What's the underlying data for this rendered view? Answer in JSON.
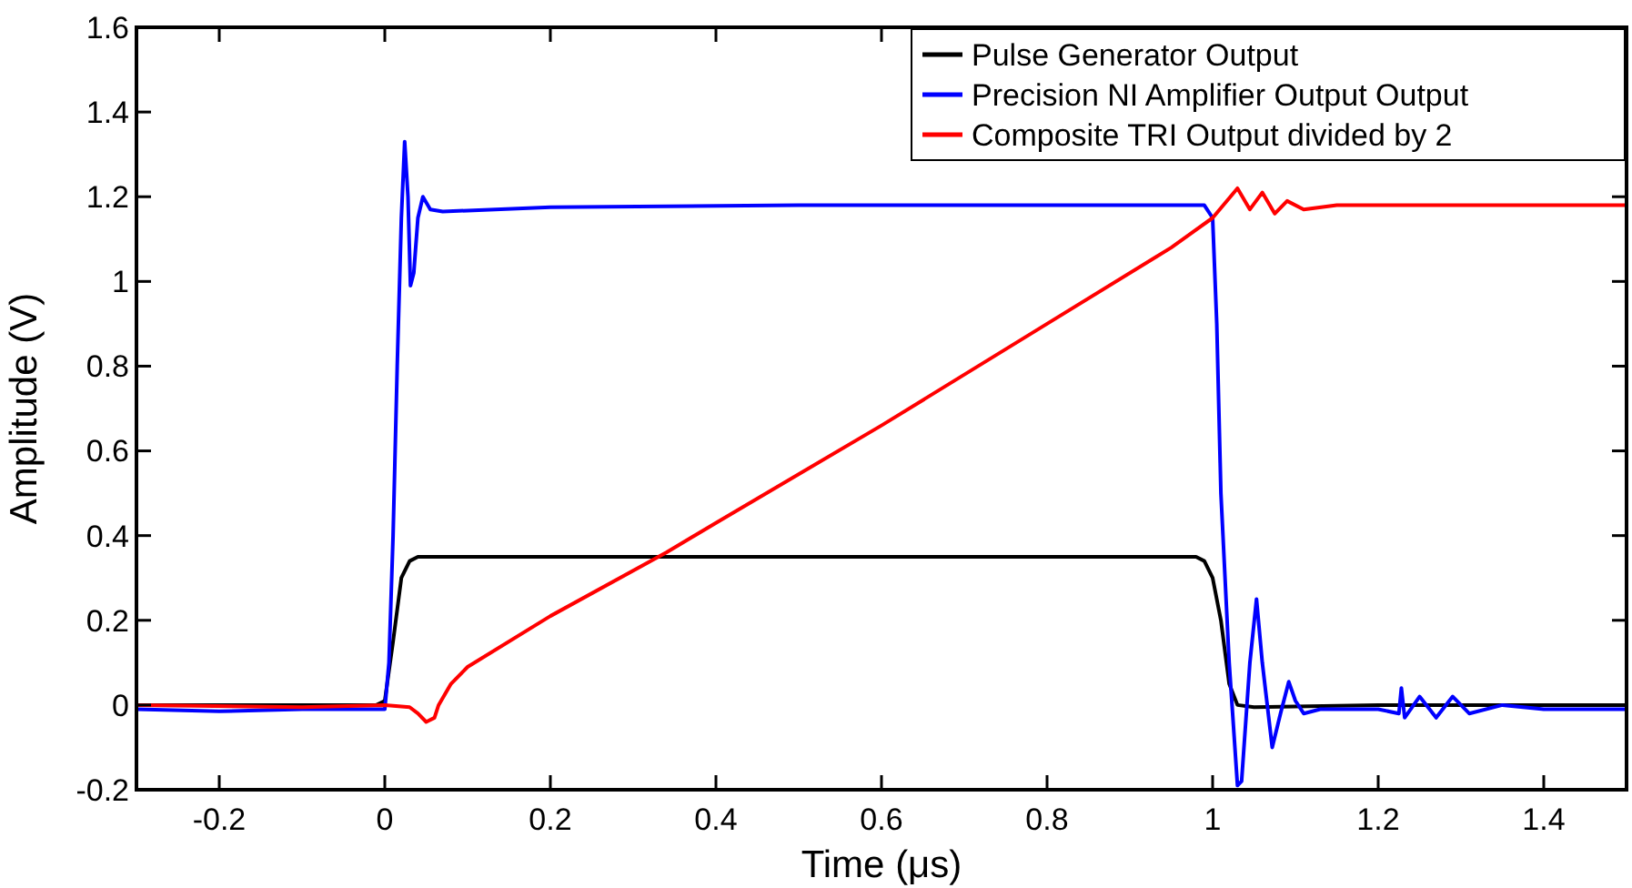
{
  "chart_data": {
    "type": "line",
    "xlabel": "Time (μs)",
    "ylabel": "Amplitude (V)",
    "xlim": [
      -0.3,
      1.5
    ],
    "ylim": [
      -0.2,
      1.6
    ],
    "xticks": [
      -0.2,
      0,
      0.2,
      0.4,
      0.6,
      0.8,
      1,
      1.2,
      1.4
    ],
    "yticks": [
      -0.2,
      0,
      0.2,
      0.4,
      0.6,
      0.8,
      1,
      1.2,
      1.4,
      1.6
    ],
    "grid": false,
    "legend": "top right",
    "marker": "none",
    "line_style": "solid",
    "series": [
      {
        "name": "Pulse Generator Output",
        "color": "#000000",
        "x": [
          -0.3,
          -0.1,
          -0.01,
          0,
          0.01,
          0.02,
          0.03,
          0.04,
          0.3,
          0.6,
          0.98,
          0.99,
          1,
          1.01,
          1.02,
          1.03,
          1.05,
          1.2,
          1.5
        ],
        "values": [
          0,
          0,
          0,
          0.01,
          0.15,
          0.3,
          0.34,
          0.35,
          0.35,
          0.35,
          0.35,
          0.34,
          0.3,
          0.2,
          0.05,
          0,
          -0.005,
          0,
          0
        ]
      },
      {
        "name": "Precision NI Amplifier Output Output",
        "color": "#0000ff",
        "x": [
          -0.3,
          -0.2,
          -0.1,
          0,
          0.005,
          0.01,
          0.015,
          0.02,
          0.024,
          0.028,
          0.031,
          0.035,
          0.04,
          0.046,
          0.055,
          0.07,
          0.2,
          0.5,
          0.8,
          0.99,
          1,
          1.005,
          1.01,
          1.02,
          1.03,
          1.035,
          1.045,
          1.053,
          1.06,
          1.072,
          1.082,
          1.092,
          1.1,
          1.11,
          1.13,
          1.2,
          1.225,
          1.228,
          1.232,
          1.25,
          1.27,
          1.29,
          1.31,
          1.35,
          1.4,
          1.5
        ],
        "values": [
          -0.01,
          -0.015,
          -0.01,
          -0.01,
          0.1,
          0.4,
          0.8,
          1.15,
          1.33,
          1.2,
          0.99,
          1.02,
          1.15,
          1.2,
          1.17,
          1.165,
          1.175,
          1.18,
          1.18,
          1.18,
          1.15,
          0.9,
          0.5,
          0.1,
          -0.19,
          -0.18,
          0.1,
          0.25,
          0.1,
          -0.1,
          -0.02,
          0.055,
          0.01,
          -0.02,
          -0.01,
          -0.01,
          -0.02,
          0.04,
          -0.03,
          0.02,
          -0.03,
          0.02,
          -0.02,
          0,
          -0.01,
          -0.01
        ]
      },
      {
        "name": "Composite TRI Output divided by 2",
        "color": "#ff0000",
        "x": [
          -0.3,
          -0.1,
          0,
          0.03,
          0.04,
          0.05,
          0.06,
          0.065,
          0.08,
          0.1,
          0.2,
          0.34,
          0.4,
          0.6,
          0.8,
          0.95,
          1,
          1.03,
          1.045,
          1.06,
          1.075,
          1.09,
          1.11,
          1.15,
          1.3,
          1.5
        ],
        "values": [
          0,
          -0.005,
          0,
          -0.005,
          -0.02,
          -0.04,
          -0.03,
          0,
          0.05,
          0.09,
          0.21,
          0.36,
          0.43,
          0.66,
          0.9,
          1.08,
          1.15,
          1.22,
          1.17,
          1.21,
          1.16,
          1.19,
          1.17,
          1.18,
          1.18,
          1.18
        ]
      }
    ]
  }
}
